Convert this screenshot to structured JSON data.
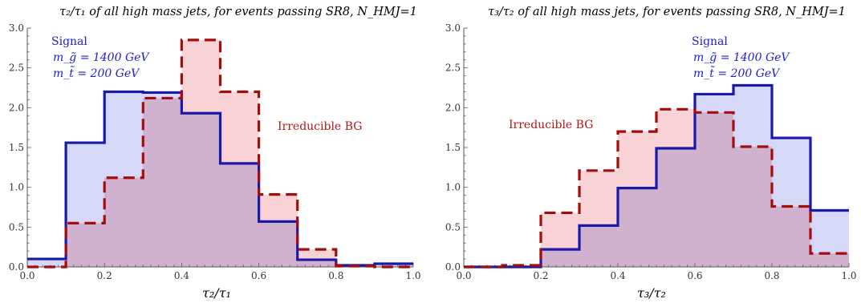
{
  "chart_data": [
    {
      "type": "area",
      "title": "τ₂/τ₁ of all high mass jets, for events passing SR8, N_HMJ=1",
      "xlabel": "τ₂/τ₁",
      "ylabel": "",
      "xlim": [
        0.0,
        1.0
      ],
      "ylim": [
        0.0,
        3.0
      ],
      "xticks": [
        "0.0",
        "0.2",
        "0.4",
        "0.6",
        "0.8",
        "1.0"
      ],
      "yticks": [
        "0.0",
        "0.5",
        "1.0",
        "1.5",
        "2.0",
        "2.5",
        "3.0"
      ],
      "bin_edges": [
        0.0,
        0.1,
        0.2,
        0.3,
        0.4,
        0.5,
        0.6,
        0.7,
        0.8,
        0.9,
        1.0
      ],
      "series": [
        {
          "name": "Signal",
          "values": [
            0.1,
            1.56,
            2.2,
            2.19,
            1.93,
            1.3,
            0.57,
            0.09,
            0.02,
            0.04
          ],
          "color": "#1a1aaa",
          "fill": "#d4d6f7",
          "style": "solid"
        },
        {
          "name": "Irreducible BG",
          "values": [
            0.0,
            0.55,
            1.12,
            2.12,
            2.85,
            2.2,
            0.91,
            0.22,
            0.01,
            0.0
          ],
          "color": "#a30d0d",
          "fill": "#f8d0d3",
          "style": "dashed"
        }
      ],
      "annotations": {
        "signal": [
          "Signal",
          "m_g̃ = 1400 GeV",
          "m_t̃ = 200 GeV"
        ],
        "background": [
          "Irreducible BG"
        ]
      }
    },
    {
      "type": "area",
      "title": "τ₃/τ₂ of all high mass jets, for events passing SR8, N_HMJ=1",
      "xlabel": "τ₃/τ₂",
      "ylabel": "",
      "xlim": [
        0.0,
        1.0
      ],
      "ylim": [
        0.0,
        3.0
      ],
      "xticks": [
        "0.0",
        "0.2",
        "0.4",
        "0.6",
        "0.8",
        "1.0"
      ],
      "yticks": [
        "0.0",
        "0.5",
        "1.0",
        "1.5",
        "2.0",
        "2.5",
        "3.0"
      ],
      "bin_edges": [
        0.0,
        0.1,
        0.2,
        0.3,
        0.4,
        0.5,
        0.6,
        0.7,
        0.8,
        0.9,
        1.0
      ],
      "series": [
        {
          "name": "Signal",
          "values": [
            0.0,
            0.0,
            0.22,
            0.52,
            0.99,
            1.49,
            2.17,
            2.28,
            1.62,
            0.71
          ],
          "color": "#1a1aaa",
          "fill": "#d4d6f7",
          "style": "solid"
        },
        {
          "name": "Irreducible BG",
          "values": [
            0.0,
            0.02,
            0.68,
            1.21,
            1.7,
            1.98,
            1.94,
            1.51,
            0.76,
            0.17
          ],
          "color": "#a30d0d",
          "fill": "#f8d0d3",
          "style": "dashed"
        }
      ],
      "annotations": {
        "signal": [
          "Signal",
          "m_g̃ = 1400 GeV",
          "m_t̃ = 200 GeV"
        ],
        "background": [
          "Irreducible BG"
        ]
      }
    }
  ]
}
